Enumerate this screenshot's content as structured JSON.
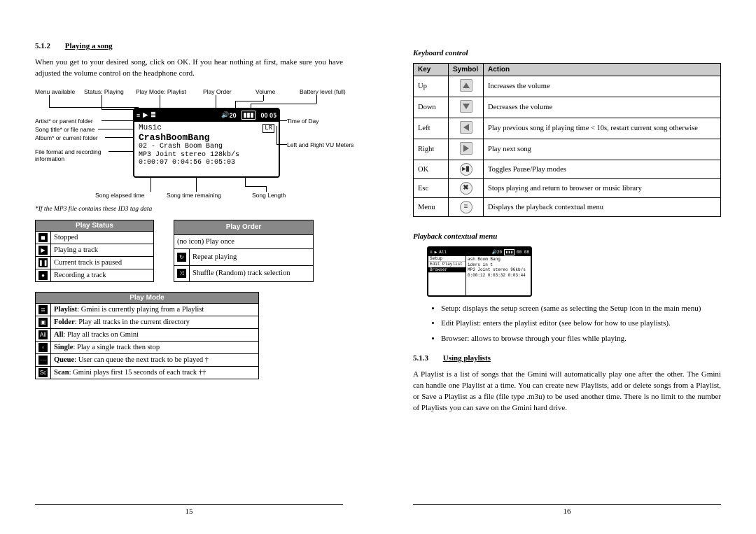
{
  "left": {
    "sectionNum": "5.1.2",
    "sectionTitle": "Playing a song",
    "intro": "When you get to your desired song, click on OK. If you hear nothing at first, make sure you have adjusted the volume control on the headphone cord.",
    "diagram": {
      "labelsTop": [
        "Menu available",
        "Status: Playing",
        "Play Mode: Playlist",
        "Play Order",
        "Volume",
        "Battery level (full)"
      ],
      "labelsLeft": [
        "Artist* or parent folder",
        "Song title* or file name",
        "Album* or current folder",
        "File format and recording information"
      ],
      "labelsRight": [
        "Time of Day",
        "Left and Right VU Meters"
      ],
      "labelsBottom": [
        "Song elapsed time",
        "Song time remaining",
        "Song Length"
      ],
      "screen": {
        "row1a": "Music",
        "row1b": "LR",
        "row2": "CrashBoomBang",
        "row3": "02 - Crash Boom Bang",
        "row4": "MP3 Joint stereo 128kb/s",
        "row5": "0:00:07   0:04:56   0:05:03",
        "topVol": "20",
        "topTime": "00 05"
      }
    },
    "footnote": "*If the MP3 file contains these ID3 tag data",
    "playStatus": {
      "header": "Play Status",
      "rows": [
        {
          "icon": "◼",
          "text": "Stopped"
        },
        {
          "icon": "▶",
          "text": "Playing a track"
        },
        {
          "icon": "❚❚",
          "text": "Current track is paused"
        },
        {
          "icon": "●",
          "text": "Recording a track"
        }
      ]
    },
    "playOrder": {
      "header": "Play Order",
      "rows": [
        {
          "icon": "",
          "text": "(no icon) Play once"
        },
        {
          "icon": "↻",
          "text": "Repeat playing"
        },
        {
          "icon": "⤨",
          "text": "Shuffle (Random) track selection"
        }
      ]
    },
    "playMode": {
      "header": "Play Mode",
      "rows": [
        {
          "icon": "≣",
          "boldLabel": "Playlist",
          "text": ": Gmini is currently playing from a Playlist"
        },
        {
          "icon": "▣",
          "boldLabel": "Folder",
          "text": ": Play all tracks in the current directory"
        },
        {
          "icon": "All",
          "boldLabel": "All",
          "text": ": Play all tracks on Gmini"
        },
        {
          "icon": "▫",
          "boldLabel": "Single",
          "text": ": Play a single track then stop"
        },
        {
          "icon": "⋯",
          "boldLabel": "Queue",
          "text": ": User can queue the next track to be played †"
        },
        {
          "icon": "Sc",
          "boldLabel": "Scan",
          "text": ": Gmini plays first 15 seconds of each track ††"
        }
      ]
    },
    "pageNum": "15"
  },
  "right": {
    "head1": "Keyboard control",
    "kbd": {
      "headers": [
        "Key",
        "Symbol",
        "Action"
      ],
      "rows": [
        {
          "key": "Up",
          "sym": "up",
          "action": "Increases the volume"
        },
        {
          "key": "Down",
          "sym": "down",
          "action": "Decreases the volume"
        },
        {
          "key": "Left",
          "sym": "left",
          "action": "Play previous song if playing time < 10s, restart current song otherwise"
        },
        {
          "key": "Right",
          "sym": "right",
          "action": "Play next song"
        },
        {
          "key": "OK",
          "sym": "ok",
          "action": "Toggles Pause/Play modes"
        },
        {
          "key": "Esc",
          "sym": "esc",
          "action": "Stops playing and return to browser or music library"
        },
        {
          "key": "Menu",
          "sym": "menu",
          "action": "Displays the playback contextual menu"
        }
      ]
    },
    "head2": "Playback contextual menu",
    "ctx": {
      "topVol": "20",
      "topTime": "00 08",
      "menu": [
        "Setup",
        "Edit Playlist",
        "Browser"
      ],
      "selected": 2,
      "r1": "ash Boom Bang",
      "r2": "iders in t",
      "r3": "MP3 Joint stereo 96kb/s",
      "r4": "0:00:12  0:03:32  0:03:44"
    },
    "bullets": [
      "Setup: displays the setup screen (same as selecting the Setup icon in the main menu)",
      "Edit Playlist: enters the playlist editor (see below for how to use playlists).",
      "Browser: allows to browse through your files while playing."
    ],
    "sectionNum": "5.1.3",
    "sectionTitle": "Using playlists",
    "body": "A Playlist is a list of songs that the Gmini will automatically play one after the other. The Gmini can handle one Playlist at a time. You can create new Playlists, add or delete songs from a Playlist, or Save a Playlist as a file (file type .m3u) to be used another time. There is no limit to the number of Playlists you can save on the Gmini hard drive.",
    "pageNum": "16"
  }
}
